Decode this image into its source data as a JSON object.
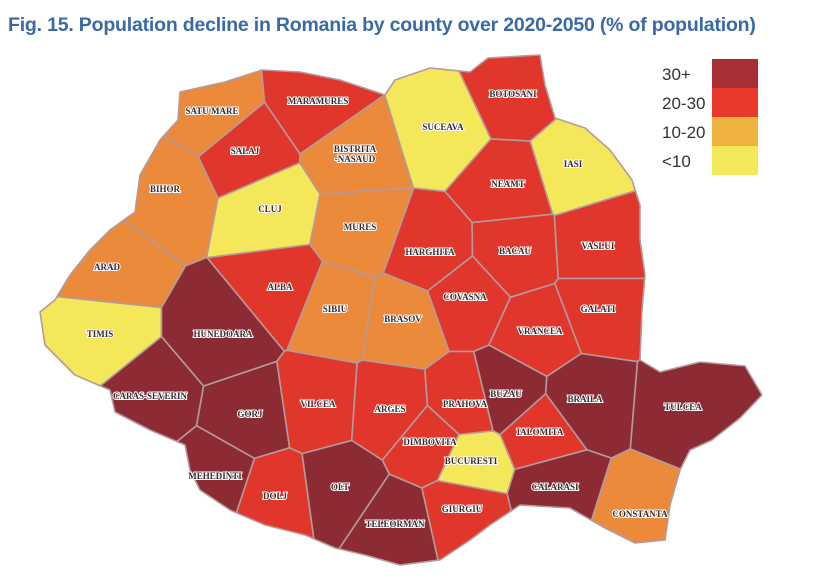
{
  "title": "Fig. 15. Population decline in Romania by county over 2020-2050 (% of population)",
  "legend": [
    {
      "label": "30+",
      "key": "30+",
      "color": "#a83035"
    },
    {
      "label": "20-30",
      "key": "20-30",
      "color": "#e8392a"
    },
    {
      "label": "10-20",
      "key": "10-20",
      "color": "#efb23c"
    },
    {
      "label": "<10",
      "key": "<10",
      "color": "#f4e95a"
    }
  ],
  "map_colors": {
    "30+": "#8c2b33",
    "20-30": "#e0362b",
    "10-20": "#ec8a3c",
    "<10": "#f4e85a",
    "border": "#b39b9b"
  },
  "counties": [
    {
      "name": "SATU MARE",
      "category": "10-20"
    },
    {
      "name": "MARAMURES",
      "category": "20-30"
    },
    {
      "name": "BOTOSANI",
      "category": "20-30"
    },
    {
      "name": "SUCEAVA",
      "category": "<10"
    },
    {
      "name": "BISTRITA -NASAUD",
      "category": "10-20"
    },
    {
      "name": "SALAJ",
      "category": "20-30"
    },
    {
      "name": "IASI",
      "category": "<10"
    },
    {
      "name": "BIHOR",
      "category": "10-20"
    },
    {
      "name": "CLUJ",
      "category": "<10"
    },
    {
      "name": "NEAMT",
      "category": "20-30"
    },
    {
      "name": "MURES",
      "category": "10-20"
    },
    {
      "name": "HARGHITA",
      "category": "20-30"
    },
    {
      "name": "BACAU",
      "category": "20-30"
    },
    {
      "name": "VASLUI",
      "category": "20-30"
    },
    {
      "name": "ARAD",
      "category": "10-20"
    },
    {
      "name": "ALBA",
      "category": "20-30"
    },
    {
      "name": "SIBIU",
      "category": "10-20"
    },
    {
      "name": "BRASOV",
      "category": "10-20"
    },
    {
      "name": "COVASNA",
      "category": "20-30"
    },
    {
      "name": "GALATI",
      "category": "20-30"
    },
    {
      "name": "TIMIS",
      "category": "<10"
    },
    {
      "name": "HUNEDOARA",
      "category": "30+"
    },
    {
      "name": "VRANCEA",
      "category": "20-30"
    },
    {
      "name": "BUZAU",
      "category": "30+"
    },
    {
      "name": "BRAILA",
      "category": "30+"
    },
    {
      "name": "TULCEA",
      "category": "30+"
    },
    {
      "name": "CARAS-SEVERIN",
      "category": "30+"
    },
    {
      "name": "GORJ",
      "category": "30+"
    },
    {
      "name": "VILCEA",
      "category": "20-30"
    },
    {
      "name": "ARGES",
      "category": "20-30"
    },
    {
      "name": "PRAHOVA",
      "category": "20-30"
    },
    {
      "name": "DIMBOVITA",
      "category": "20-30"
    },
    {
      "name": "IALOMITA",
      "category": "20-30"
    },
    {
      "name": "BUCURESTI",
      "category": "<10"
    },
    {
      "name": "MEHEDINTI",
      "category": "30+"
    },
    {
      "name": "DOLJ",
      "category": "20-30"
    },
    {
      "name": "OLT",
      "category": "30+"
    },
    {
      "name": "TELEORMAN",
      "category": "30+"
    },
    {
      "name": "GIURGIU",
      "category": "20-30"
    },
    {
      "name": "CALARASI",
      "category": "30+"
    },
    {
      "name": "CONSTANTA",
      "category": "10-20"
    }
  ]
}
